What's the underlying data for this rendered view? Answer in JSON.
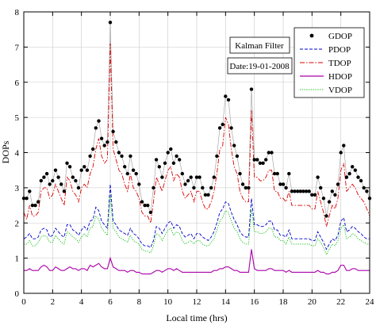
{
  "chart_data": {
    "type": "line",
    "xlabel": "Local time (hrs)",
    "ylabel": "DOPs",
    "xlim": [
      0,
      24
    ],
    "ylim": [
      0,
      8
    ],
    "x_ticks": [
      0,
      2,
      4,
      6,
      8,
      10,
      12,
      14,
      16,
      18,
      20,
      22,
      24
    ],
    "y_ticks": [
      0,
      1,
      2,
      3,
      4,
      5,
      6,
      7,
      8
    ],
    "grid": true,
    "legend_position": "top-right",
    "annotations": [
      "Kalman Filter",
      "Date:19-01-2008"
    ],
    "colors": {
      "GDOP": "#000000",
      "PDOP": "#0000cc",
      "TDOP": "#dd0000",
      "HDOP": "#aa00aa",
      "VDOP": "#00bb00",
      "grid": "#c8c8c8"
    },
    "x": [
      0.0,
      0.2,
      0.4,
      0.6,
      0.8,
      1.0,
      1.2,
      1.4,
      1.6,
      1.8,
      2.0,
      2.2,
      2.4,
      2.6,
      2.8,
      3.0,
      3.2,
      3.4,
      3.6,
      3.8,
      4.0,
      4.2,
      4.4,
      4.6,
      4.8,
      5.0,
      5.2,
      5.4,
      5.6,
      5.8,
      6.0,
      6.2,
      6.4,
      6.6,
      6.8,
      7.0,
      7.2,
      7.4,
      7.6,
      7.8,
      8.0,
      8.2,
      8.4,
      8.6,
      8.8,
      9.0,
      9.2,
      9.4,
      9.6,
      9.8,
      10.0,
      10.2,
      10.4,
      10.6,
      10.8,
      11.0,
      11.2,
      11.4,
      11.6,
      11.8,
      12.0,
      12.2,
      12.4,
      12.6,
      12.8,
      13.0,
      13.2,
      13.4,
      13.6,
      13.8,
      14.0,
      14.2,
      14.4,
      14.6,
      14.8,
      15.0,
      15.2,
      15.4,
      15.6,
      15.8,
      16.0,
      16.2,
      16.4,
      16.6,
      16.8,
      17.0,
      17.2,
      17.4,
      17.6,
      17.8,
      18.0,
      18.2,
      18.4,
      18.6,
      18.8,
      19.0,
      19.2,
      19.4,
      19.6,
      19.8,
      20.0,
      20.2,
      20.4,
      20.6,
      20.8,
      21.0,
      21.2,
      21.4,
      21.6,
      21.8,
      22.0,
      22.2,
      22.4,
      22.6,
      22.8,
      23.0,
      23.2,
      23.4,
      23.6,
      23.8,
      24.0
    ],
    "series": [
      {
        "name": "GDOP",
        "marker": "dot",
        "values": [
          2.7,
          2.7,
          2.9,
          2.5,
          2.5,
          2.6,
          3.2,
          3.3,
          3.4,
          3.1,
          3.2,
          3.5,
          3.3,
          3.1,
          2.9,
          3.7,
          3.6,
          3.3,
          3.2,
          3.0,
          3.5,
          3.6,
          3.5,
          3.9,
          4.1,
          4.7,
          4.9,
          4.4,
          4.2,
          4.3,
          7.7,
          4.6,
          4.3,
          4.0,
          3.9,
          3.6,
          3.4,
          3.9,
          3.5,
          3.4,
          3.1,
          2.6,
          2.5,
          2.5,
          2.3,
          3.0,
          3.8,
          3.6,
          3.3,
          3.7,
          4.0,
          4.1,
          3.7,
          3.9,
          3.8,
          3.4,
          3.1,
          3.2,
          3.3,
          3.0,
          3.3,
          3.3,
          3.0,
          2.8,
          2.8,
          3.0,
          3.3,
          3.9,
          4.7,
          4.8,
          5.6,
          5.5,
          4.7,
          4.2,
          3.9,
          3.4,
          3.1,
          3.0,
          3.0,
          5.8,
          3.8,
          3.8,
          3.7,
          3.7,
          3.8,
          4.0,
          4.0,
          3.4,
          3.4,
          3.1,
          3.1,
          3.0,
          3.4,
          2.9,
          2.9,
          2.9,
          2.9,
          2.9,
          2.9,
          2.9,
          2.8,
          2.8,
          3.3,
          3.0,
          2.7,
          2.2,
          2.6,
          2.9,
          2.8,
          3.1,
          4.0,
          4.2,
          3.3,
          3.4,
          3.6,
          3.5,
          3.3,
          3.2,
          3.0,
          2.9,
          2.7
        ]
      },
      {
        "name": "PDOP",
        "style": "dashed",
        "values": [
          1.55,
          1.6,
          1.7,
          1.55,
          1.55,
          1.6,
          1.8,
          1.85,
          1.8,
          1.6,
          1.65,
          1.85,
          1.75,
          1.65,
          1.6,
          1.95,
          1.95,
          1.8,
          1.75,
          1.65,
          1.8,
          1.9,
          1.8,
          2.05,
          2.1,
          2.45,
          2.35,
          2.05,
          1.95,
          1.85,
          3.1,
          2.05,
          1.95,
          1.8,
          1.75,
          1.7,
          1.65,
          1.85,
          1.7,
          1.65,
          1.55,
          1.4,
          1.35,
          1.35,
          1.3,
          1.5,
          1.9,
          1.85,
          1.7,
          1.85,
          2.0,
          2.05,
          1.85,
          1.95,
          1.9,
          1.7,
          1.6,
          1.65,
          1.7,
          1.55,
          1.7,
          1.7,
          1.6,
          1.55,
          1.5,
          1.6,
          1.75,
          2.0,
          2.3,
          2.4,
          2.6,
          2.55,
          2.3,
          2.1,
          1.95,
          1.75,
          1.65,
          1.6,
          1.6,
          2.7,
          1.95,
          1.95,
          1.9,
          1.9,
          1.95,
          2.05,
          2.05,
          1.8,
          1.8,
          1.65,
          1.65,
          1.6,
          1.8,
          1.55,
          1.55,
          1.55,
          1.55,
          1.55,
          1.55,
          1.55,
          1.5,
          1.5,
          1.75,
          1.6,
          1.45,
          1.25,
          1.4,
          1.55,
          1.5,
          1.65,
          2.05,
          2.15,
          1.75,
          1.8,
          1.9,
          1.85,
          1.75,
          1.7,
          1.6,
          1.55,
          1.55
        ]
      },
      {
        "name": "TDOP",
        "style": "dashdot",
        "values": [
          2.3,
          2.1,
          2.5,
          2.2,
          2.2,
          2.3,
          2.9,
          3.0,
          3.0,
          2.7,
          2.8,
          3.1,
          2.9,
          2.7,
          2.5,
          3.3,
          3.2,
          2.9,
          2.8,
          2.6,
          3.0,
          3.1,
          3.0,
          3.4,
          3.6,
          4.1,
          4.4,
          3.9,
          3.7,
          3.8,
          7.1,
          4.1,
          3.8,
          3.5,
          3.4,
          3.1,
          2.9,
          3.4,
          3.0,
          2.9,
          2.7,
          2.3,
          2.2,
          2.2,
          2.0,
          2.6,
          3.3,
          3.1,
          2.9,
          3.2,
          3.5,
          3.6,
          3.2,
          3.4,
          3.3,
          2.9,
          2.7,
          2.8,
          2.9,
          2.6,
          2.9,
          2.9,
          2.6,
          2.4,
          2.4,
          2.6,
          2.9,
          3.4,
          4.1,
          4.2,
          5.0,
          4.8,
          4.1,
          3.6,
          3.4,
          2.9,
          2.7,
          2.6,
          2.6,
          5.2,
          3.3,
          3.3,
          3.2,
          3.2,
          3.3,
          3.5,
          3.5,
          2.9,
          2.9,
          2.7,
          2.7,
          2.6,
          2.9,
          2.5,
          2.5,
          2.5,
          2.5,
          2.5,
          2.5,
          2.5,
          2.4,
          2.4,
          2.9,
          2.6,
          2.3,
          1.9,
          2.2,
          2.5,
          2.4,
          2.7,
          3.5,
          3.7,
          2.9,
          3.0,
          3.1,
          3.0,
          2.8,
          2.7,
          2.6,
          2.4,
          2.2
        ]
      },
      {
        "name": "HDOP",
        "style": "solid",
        "values": [
          0.65,
          0.65,
          0.7,
          0.65,
          0.65,
          0.65,
          0.75,
          0.8,
          0.75,
          0.65,
          0.65,
          0.75,
          0.7,
          0.65,
          0.65,
          0.7,
          0.75,
          0.7,
          0.7,
          0.65,
          0.7,
          0.7,
          0.65,
          0.8,
          0.75,
          0.8,
          0.85,
          0.75,
          0.7,
          0.7,
          1.0,
          0.75,
          0.7,
          0.65,
          0.65,
          0.65,
          0.6,
          0.65,
          0.65,
          0.6,
          0.6,
          0.55,
          0.55,
          0.55,
          0.55,
          0.6,
          0.65,
          0.65,
          0.6,
          0.65,
          0.7,
          0.7,
          0.65,
          0.7,
          0.65,
          0.6,
          0.6,
          0.6,
          0.6,
          0.6,
          0.6,
          0.6,
          0.6,
          0.6,
          0.6,
          0.6,
          0.65,
          0.65,
          0.7,
          0.7,
          0.75,
          0.75,
          0.7,
          0.65,
          0.65,
          0.6,
          0.6,
          0.6,
          0.6,
          1.25,
          0.7,
          0.65,
          0.65,
          0.65,
          0.65,
          0.7,
          0.7,
          0.65,
          0.65,
          0.65,
          0.65,
          0.6,
          0.65,
          0.6,
          0.6,
          0.6,
          0.6,
          0.6,
          0.6,
          0.6,
          0.6,
          0.6,
          0.65,
          0.6,
          0.6,
          0.55,
          0.55,
          0.6,
          0.6,
          0.65,
          0.8,
          0.8,
          0.65,
          0.65,
          0.7,
          0.7,
          0.65,
          0.65,
          0.65,
          0.65,
          0.65
        ]
      },
      {
        "name": "VDOP",
        "style": "dotted",
        "values": [
          1.4,
          1.4,
          1.5,
          1.35,
          1.35,
          1.45,
          1.6,
          1.65,
          1.6,
          1.45,
          1.45,
          1.65,
          1.55,
          1.45,
          1.4,
          1.75,
          1.7,
          1.6,
          1.55,
          1.45,
          1.6,
          1.7,
          1.6,
          1.85,
          1.9,
          2.2,
          2.1,
          1.85,
          1.75,
          1.65,
          2.8,
          1.85,
          1.75,
          1.6,
          1.55,
          1.5,
          1.45,
          1.65,
          1.5,
          1.45,
          1.4,
          1.25,
          1.2,
          1.2,
          1.15,
          1.35,
          1.7,
          1.65,
          1.5,
          1.65,
          1.8,
          1.85,
          1.65,
          1.75,
          1.7,
          1.5,
          1.4,
          1.45,
          1.5,
          1.4,
          1.5,
          1.5,
          1.4,
          1.35,
          1.35,
          1.45,
          1.55,
          1.8,
          2.05,
          2.15,
          2.35,
          2.3,
          2.05,
          1.85,
          1.75,
          1.55,
          1.45,
          1.4,
          1.4,
          2.4,
          1.75,
          1.75,
          1.7,
          1.7,
          1.75,
          1.85,
          1.85,
          1.6,
          1.6,
          1.5,
          1.5,
          1.4,
          1.6,
          1.4,
          1.4,
          1.4,
          1.4,
          1.4,
          1.4,
          1.4,
          1.35,
          1.35,
          1.55,
          1.45,
          1.3,
          1.1,
          1.25,
          1.4,
          1.35,
          1.5,
          1.85,
          1.95,
          1.55,
          1.6,
          1.7,
          1.65,
          1.55,
          1.5,
          1.45,
          1.4,
          1.4
        ]
      }
    ]
  }
}
